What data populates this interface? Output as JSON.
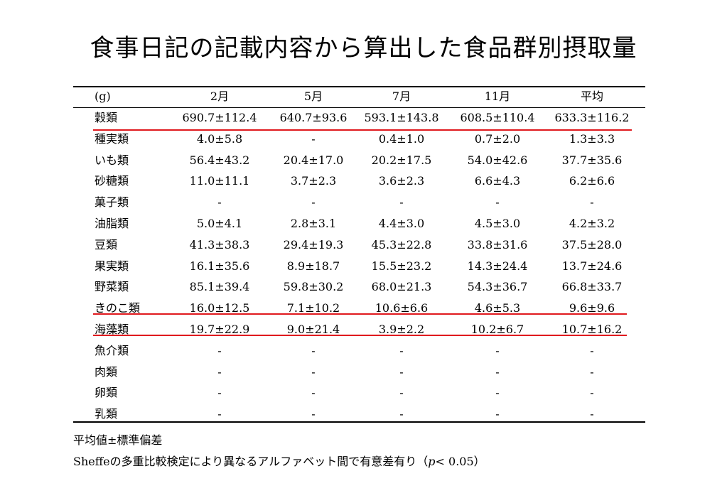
{
  "title": "食事日記の記載内容から算出した食品群別摂取量",
  "table": {
    "unit": "(g)",
    "columns": [
      "2月",
      "5月",
      "7月",
      "11月",
      "平均"
    ],
    "rows": [
      {
        "label": "穀類",
        "values": [
          "690.7±112.4",
          "640.7±93.6",
          "593.1±143.8",
          "608.5±110.4",
          "633.3±116.2"
        ]
      },
      {
        "label": "種実類",
        "values": [
          "4.0±5.8",
          "-",
          "0.4±1.0",
          "0.7±2.0",
          "1.3±3.3"
        ]
      },
      {
        "label": "いも類",
        "values": [
          "56.4±43.2",
          "20.4±17.0",
          "20.2±17.5",
          "54.0±42.6",
          "37.7±35.6"
        ]
      },
      {
        "label": "砂糖類",
        "values": [
          "11.0±11.1",
          "3.7±2.3",
          "3.6±2.3",
          "6.6±4.3",
          "6.2±6.6"
        ]
      },
      {
        "label": "菓子類",
        "values": [
          "-",
          "-",
          "-",
          "-",
          "-"
        ]
      },
      {
        "label": "油脂類",
        "values": [
          "5.0±4.1",
          "2.8±3.1",
          "4.4±3.0",
          "4.5±3.0",
          "4.2±3.2"
        ]
      },
      {
        "label": "豆類",
        "values": [
          "41.3±38.3",
          "29.4±19.3",
          "45.3±22.8",
          "33.8±31.6",
          "37.5±28.0"
        ]
      },
      {
        "label": "果実類",
        "values": [
          "16.1±35.6",
          "8.9±18.7",
          "15.5±23.2",
          "14.3±24.4",
          "13.7±24.6"
        ]
      },
      {
        "label": "野菜類",
        "values": [
          "85.1±39.4",
          "59.8±30.2",
          "68.0±21.3",
          "54.3±36.7",
          "66.8±33.7"
        ]
      },
      {
        "label": "きのこ類",
        "values": [
          "16.0±12.5",
          "7.1±10.2",
          "10.6±6.6",
          "4.6±5.3",
          "9.6±9.6"
        ]
      },
      {
        "label": "海藻類",
        "values": [
          "19.7±22.9",
          "9.0±21.4",
          "3.9±2.2",
          "10.2±6.7",
          "10.7±16.2"
        ]
      },
      {
        "label": "魚介類",
        "values": [
          "-",
          "-",
          "-",
          "-",
          "-"
        ]
      },
      {
        "label": "肉類",
        "values": [
          "-",
          "-",
          "-",
          "-",
          "-"
        ]
      },
      {
        "label": "卵類",
        "values": [
          "-",
          "-",
          "-",
          "-",
          "-"
        ]
      },
      {
        "label": "乳類",
        "values": [
          "-",
          "-",
          "-",
          "-",
          "-"
        ]
      }
    ]
  },
  "notes": {
    "line1": "平均値±標準偏差",
    "line2_prefix": "Sheffeの多重比較検定により異なるアルファベット間で有意差有り（",
    "line2_p": "p",
    "line2_suffix": "< 0.05）"
  },
  "colors": {
    "highlight_line": "#e0191e",
    "text": "#000000",
    "background": "#ffffff"
  }
}
